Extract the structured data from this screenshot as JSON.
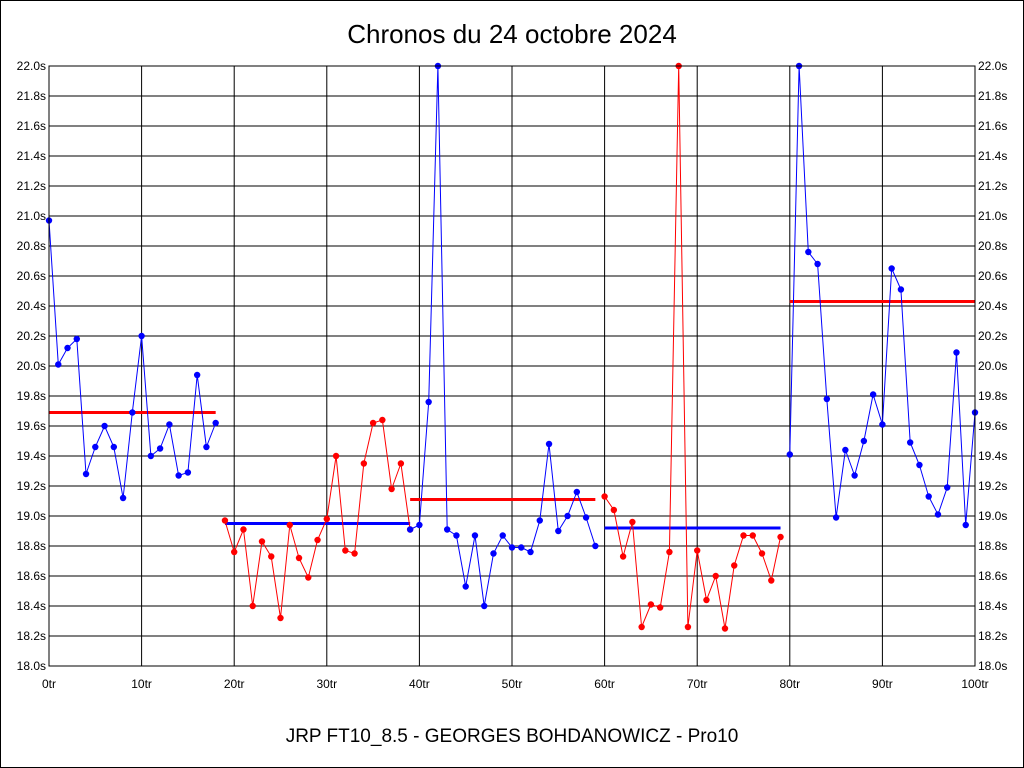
{
  "chart_data": {
    "type": "line",
    "title": "Chronos du 24 octobre 2024",
    "subtitle": "JRP FT10_8.5 - GEORGES BOHDANOWICZ - Pro10",
    "xlim": [
      0,
      100
    ],
    "ylim": [
      18.0,
      22.0
    ],
    "x_ticks": [
      0,
      10,
      20,
      30,
      40,
      50,
      60,
      70,
      80,
      90,
      100
    ],
    "x_tick_labels": [
      "0tr",
      "10tr",
      "20tr",
      "30tr",
      "40tr",
      "50tr",
      "60tr",
      "70tr",
      "80tr",
      "90tr",
      "100tr"
    ],
    "y_ticks": [
      18.0,
      18.2,
      18.4,
      18.6,
      18.8,
      19.0,
      19.2,
      19.4,
      19.6,
      19.8,
      20.0,
      20.2,
      20.4,
      20.6,
      20.8,
      21.0,
      21.2,
      21.4,
      21.6,
      21.8,
      22.0
    ],
    "y_tick_labels": [
      "18.0s",
      "18.2s",
      "18.4s",
      "18.6s",
      "18.8s",
      "19.0s",
      "19.2s",
      "19.4s",
      "19.6s",
      "19.8s",
      "20.0s",
      "20.2s",
      "20.4s",
      "20.6s",
      "20.8s",
      "21.0s",
      "21.2s",
      "21.4s",
      "21.6s",
      "21.8s",
      "22.0s"
    ],
    "y_axes": [
      "left",
      "right"
    ],
    "grid": true,
    "legend": "none",
    "series": [
      {
        "color": "#0000ff",
        "x": [
          0,
          1,
          2,
          3,
          4,
          5,
          6,
          7,
          8,
          9,
          10,
          11,
          12,
          13,
          14,
          15,
          16,
          17,
          18
        ],
        "y": [
          20.97,
          20.01,
          20.12,
          20.18,
          19.28,
          19.46,
          19.6,
          19.46,
          19.12,
          19.69,
          20.2,
          19.4,
          19.45,
          19.61,
          19.27,
          19.29,
          19.94,
          19.46,
          19.62
        ],
        "average": 19.69,
        "average_color": "#ff0000"
      },
      {
        "color": "#ff0000",
        "x": [
          19,
          20,
          21,
          22,
          23,
          24,
          25,
          26,
          27,
          28,
          29,
          30,
          31,
          32,
          33,
          34,
          35,
          36,
          37,
          38,
          39
        ],
        "y": [
          18.97,
          18.76,
          18.91,
          18.4,
          18.83,
          18.73,
          18.32,
          18.94,
          18.72,
          18.59,
          18.84,
          18.98,
          19.4,
          18.77,
          18.75,
          19.35,
          19.62,
          19.64,
          19.18,
          19.35,
          18.91
        ],
        "average": 18.95,
        "average_color": "#0000ff"
      },
      {
        "color": "#0000ff",
        "x": [
          39,
          40,
          41,
          42,
          43,
          44,
          45,
          46,
          47,
          48,
          49,
          50,
          51,
          52,
          53,
          54,
          55,
          56,
          57,
          58,
          59
        ],
        "y": [
          18.91,
          18.94,
          19.76,
          22.0,
          18.91,
          18.87,
          18.53,
          18.87,
          18.4,
          18.75,
          18.87,
          18.79,
          18.79,
          18.76,
          18.97,
          19.48,
          18.9,
          19.0,
          19.16,
          18.99,
          18.8
        ],
        "average": 19.11,
        "average_color": "#ff0000"
      },
      {
        "color": "#ff0000",
        "x": [
          60,
          61,
          62,
          63,
          64,
          65,
          66,
          67,
          68,
          69,
          70,
          71,
          72,
          73,
          74,
          75,
          76,
          77,
          78,
          79
        ],
        "y": [
          19.13,
          19.04,
          18.73,
          18.96,
          18.26,
          18.41,
          18.39,
          18.76,
          22.0,
          18.26,
          18.77,
          18.44,
          18.6,
          18.25,
          18.67,
          18.87,
          18.87,
          18.75,
          18.57,
          18.86
        ],
        "average": 18.92,
        "average_color": "#0000ff"
      },
      {
        "color": "#0000ff",
        "x": [
          80,
          81,
          82,
          83,
          84,
          85,
          86,
          87,
          88,
          89,
          90,
          91,
          92,
          93,
          94,
          95,
          96,
          97,
          98,
          99,
          100
        ],
        "y": [
          19.41,
          22.0,
          20.76,
          20.68,
          19.78,
          18.99,
          19.44,
          19.27,
          19.5,
          19.81,
          19.61,
          20.65,
          20.51,
          19.49,
          19.34,
          19.13,
          19.01,
          19.19,
          20.09,
          18.94,
          19.69
        ],
        "average": 20.43,
        "average_color": "#ff0000"
      }
    ]
  }
}
